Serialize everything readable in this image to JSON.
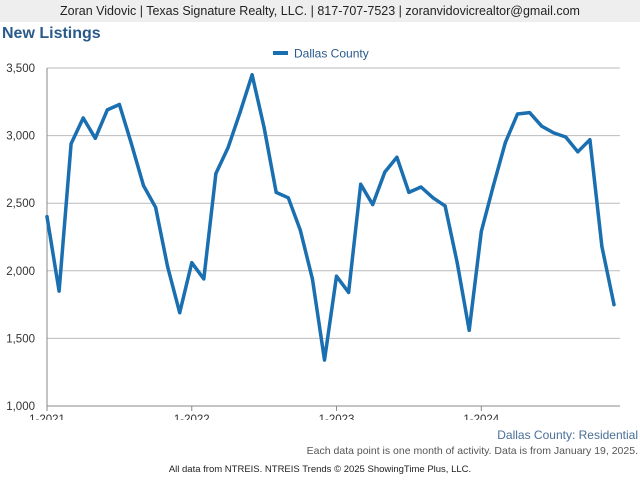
{
  "header": {
    "contact": "Zoran Vidovic | Texas Signature Realty, LLC. | 817-707-7523 | zoranvidovicrealtor@gmail.com"
  },
  "footer": {
    "subtitle": "Dallas County: Residential",
    "note": "Each data point is one month of activity. Data is from January 19, 2025.",
    "source": "All data from NTREIS. NTREIS Trends © 2025 ShowingTime Plus, LLC."
  },
  "colors": {
    "series": "#1a6fb0",
    "title": "#2a5a8a",
    "grid": "#bbbbbb"
  },
  "chart_data": {
    "type": "line",
    "title": "New Listings",
    "legend_position": "top-center",
    "grid": true,
    "ylim": [
      1000,
      3500
    ],
    "yticks": [
      1000,
      1500,
      2000,
      2500,
      3000,
      3500
    ],
    "ytick_labels": [
      "1,000",
      "1,500",
      "2,000",
      "2,500",
      "3,000",
      "3,500"
    ],
    "xtick_labels": [
      "1-2021",
      "1-2022",
      "1-2023",
      "1-2024"
    ],
    "xtick_index": [
      0,
      12,
      24,
      36
    ],
    "series": [
      {
        "name": "Dallas County",
        "values": [
          2400,
          1850,
          2940,
          3130,
          2980,
          3190,
          3230,
          2940,
          2630,
          2470,
          2030,
          1690,
          2060,
          1940,
          2720,
          2910,
          3170,
          3450,
          3060,
          2580,
          2540,
          2300,
          1940,
          1340,
          1960,
          1840,
          2640,
          2490,
          2730,
          2840,
          2580,
          2620,
          2540,
          2480,
          2060,
          1560,
          2290,
          2630,
          2950,
          3160,
          3170,
          3070,
          3020,
          2990,
          2880,
          2970,
          2180,
          1750
        ]
      }
    ]
  }
}
